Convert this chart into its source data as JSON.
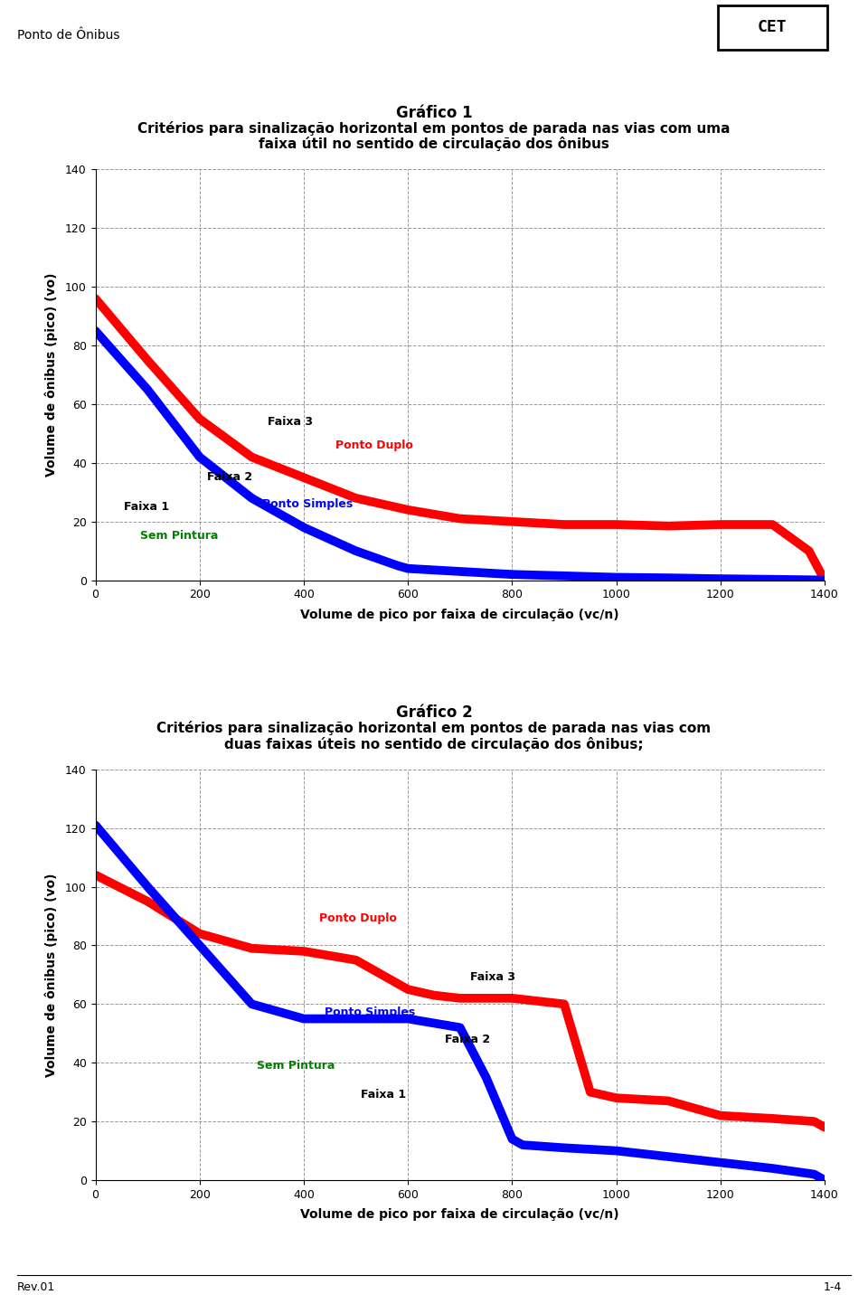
{
  "header_text": "Ponto de Ônibus",
  "header_bar_color": "#2a9d8f",
  "footer_text": "Rev.01",
  "footer_right": "1-4",
  "chart1_title1": "Gráfico 1",
  "chart1_title2": "Critérios para sinalização horizontal em pontos de parada nas vias com uma",
  "chart1_title3": "faixa útil no sentido de circulação dos ônibus",
  "chart2_title1": "Gráfico 2",
  "chart2_title2": "Critérios para sinalização horizontal em pontos de parada nas vias com",
  "chart2_title3": "duas faixas úteis no sentido de circulação dos ônibus;",
  "xlabel": "Volume de pico por faixa de circulação (vc/n)",
  "ylabel": "Volume de ônibus (pico) (vo)",
  "xlim": [
    0,
    1400
  ],
  "ylim": [
    0,
    140
  ],
  "xticks": [
    0,
    200,
    400,
    600,
    800,
    1000,
    1200,
    1400
  ],
  "yticks": [
    0,
    20,
    40,
    60,
    80,
    100,
    120,
    140
  ],
  "blue_color": "#0000ff",
  "red_color": "#ff0000",
  "green_color": "#008000",
  "chart1_blue_x": [
    0,
    100,
    200,
    300,
    380,
    400,
    500,
    580,
    600,
    700,
    800,
    900,
    1000,
    1100,
    1200,
    1300,
    1390,
    1400
  ],
  "chart1_blue_y": [
    85,
    65,
    42,
    28,
    20,
    18,
    10,
    5,
    4,
    3,
    2,
    1.5,
    1,
    0.8,
    0.5,
    0.3,
    0.1,
    0
  ],
  "chart1_red_x": [
    0,
    100,
    200,
    300,
    400,
    500,
    600,
    700,
    800,
    900,
    1000,
    1100,
    1200,
    1300,
    1370,
    1400
  ],
  "chart1_red_y": [
    96,
    75,
    55,
    42,
    35,
    28,
    24,
    21,
    20,
    19,
    19,
    18.5,
    19,
    19,
    10,
    0
  ],
  "chart2_blue_x": [
    0,
    100,
    200,
    300,
    400,
    500,
    600,
    700,
    750,
    800,
    820,
    900,
    1000,
    1100,
    1200,
    1300,
    1380,
    1400
  ],
  "chart2_blue_y": [
    121,
    100,
    80,
    60,
    55,
    55,
    55,
    52,
    35,
    14,
    12,
    11,
    10,
    8,
    6,
    4,
    2,
    0
  ],
  "chart2_red_x": [
    0,
    100,
    200,
    300,
    400,
    500,
    600,
    650,
    700,
    800,
    900,
    950,
    1000,
    1100,
    1200,
    1300,
    1380,
    1400
  ],
  "chart2_red_y": [
    104,
    95,
    84,
    79,
    78,
    75,
    65,
    63,
    62,
    62,
    60,
    30,
    28,
    27,
    22,
    21,
    20,
    18
  ]
}
